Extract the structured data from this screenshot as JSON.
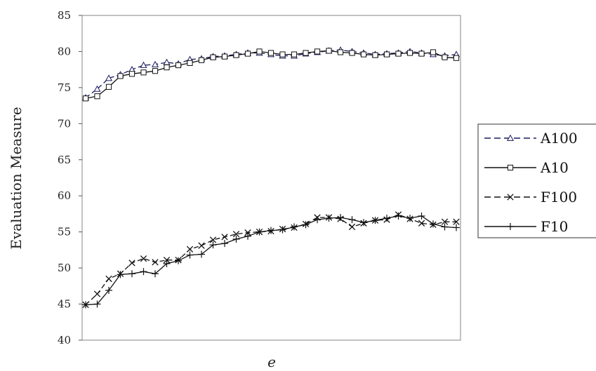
{
  "chart_data": {
    "type": "line",
    "xlabel": "e",
    "ylabel": "Evaluation Measure",
    "ylim": [
      40,
      85
    ],
    "yticks": [
      40,
      45,
      50,
      55,
      60,
      65,
      70,
      75,
      80,
      85
    ],
    "grid": false,
    "legend_position": "right",
    "series": [
      {
        "name": "A100",
        "marker": "triangle",
        "dash": "dashed",
        "color": "#1a1a5e",
        "values": [
          73.6,
          74.8,
          76.3,
          76.8,
          77.5,
          78.1,
          78.2,
          78.5,
          78.3,
          78.9,
          79.0,
          79.3,
          79.4,
          79.6,
          79.8,
          79.8,
          79.6,
          79.4,
          79.4,
          79.7,
          79.9,
          80.1,
          80.2,
          80.0,
          79.8,
          79.6,
          79.7,
          79.8,
          80.0,
          79.8,
          79.6,
          79.4,
          79.6
        ]
      },
      {
        "name": "A10",
        "marker": "square",
        "dash": "solid",
        "color": "#111111",
        "values": [
          73.5,
          73.8,
          75.1,
          76.6,
          76.9,
          77.1,
          77.3,
          77.8,
          78.1,
          78.4,
          78.8,
          79.2,
          79.3,
          79.5,
          79.7,
          80.0,
          79.8,
          79.6,
          79.6,
          79.8,
          80.0,
          80.1,
          79.9,
          79.8,
          79.6,
          79.5,
          79.6,
          79.7,
          79.8,
          79.7,
          79.9,
          79.2,
          79.1
        ]
      },
      {
        "name": "F100",
        "marker": "x",
        "dash": "dashed",
        "color": "#111111",
        "values": [
          44.9,
          46.4,
          48.5,
          49.2,
          50.7,
          51.3,
          50.8,
          51.1,
          51.1,
          52.6,
          53.1,
          53.9,
          54.3,
          54.7,
          54.9,
          55.0,
          55.1,
          55.4,
          55.6,
          56.1,
          57.0,
          57.0,
          56.8,
          55.7,
          56.2,
          56.6,
          56.7,
          57.4,
          56.8,
          56.2,
          56.0,
          56.4,
          56.4
        ]
      },
      {
        "name": "F10",
        "marker": "plus",
        "dash": "solid",
        "color": "#111111",
        "values": [
          44.9,
          45.0,
          46.9,
          49.1,
          49.2,
          49.5,
          49.2,
          50.6,
          51.0,
          51.8,
          51.9,
          53.2,
          53.4,
          54.0,
          54.4,
          55.0,
          55.2,
          55.3,
          55.7,
          56.0,
          56.7,
          56.9,
          57.0,
          56.7,
          56.3,
          56.6,
          56.9,
          57.2,
          56.9,
          57.2,
          56.1,
          55.7,
          55.6
        ]
      }
    ]
  }
}
